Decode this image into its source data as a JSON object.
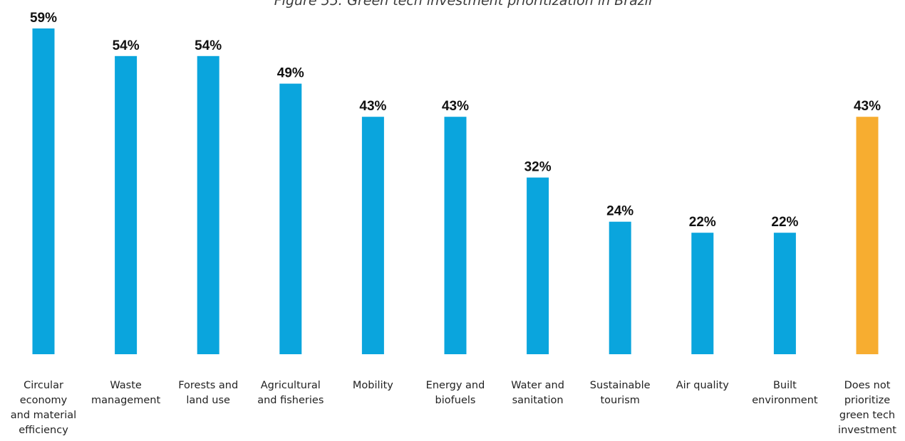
{
  "chart_data": {
    "type": "bar",
    "title": "Figure 55: Green tech investment prioritization in Brazil",
    "xlabel": "",
    "ylabel": "",
    "ylim": [
      0,
      59
    ],
    "grid": false,
    "legend": "none",
    "value_suffix": "%",
    "categories": [
      [
        "Circular",
        "economy",
        "and material",
        "efficiency"
      ],
      [
        "Waste",
        "management"
      ],
      [
        "Forests and",
        "land use"
      ],
      [
        "Agricultural",
        "and fisheries"
      ],
      [
        "Mobility"
      ],
      [
        "Energy and",
        "biofuels"
      ],
      [
        "Water and",
        "sanitation"
      ],
      [
        "Sustainable",
        "tourism"
      ],
      [
        "Air quality"
      ],
      [
        "Built",
        "environment"
      ],
      [
        "Does not",
        "prioritize",
        "green tech",
        "investment"
      ]
    ],
    "values": [
      59,
      54,
      54,
      49,
      43,
      43,
      32,
      24,
      22,
      22,
      43
    ],
    "bar_colors": [
      "#0aa5dd",
      "#0aa5dd",
      "#0aa5dd",
      "#0aa5dd",
      "#0aa5dd",
      "#0aa5dd",
      "#0aa5dd",
      "#0aa5dd",
      "#0aa5dd",
      "#0aa5dd",
      "#f7ad30"
    ]
  }
}
